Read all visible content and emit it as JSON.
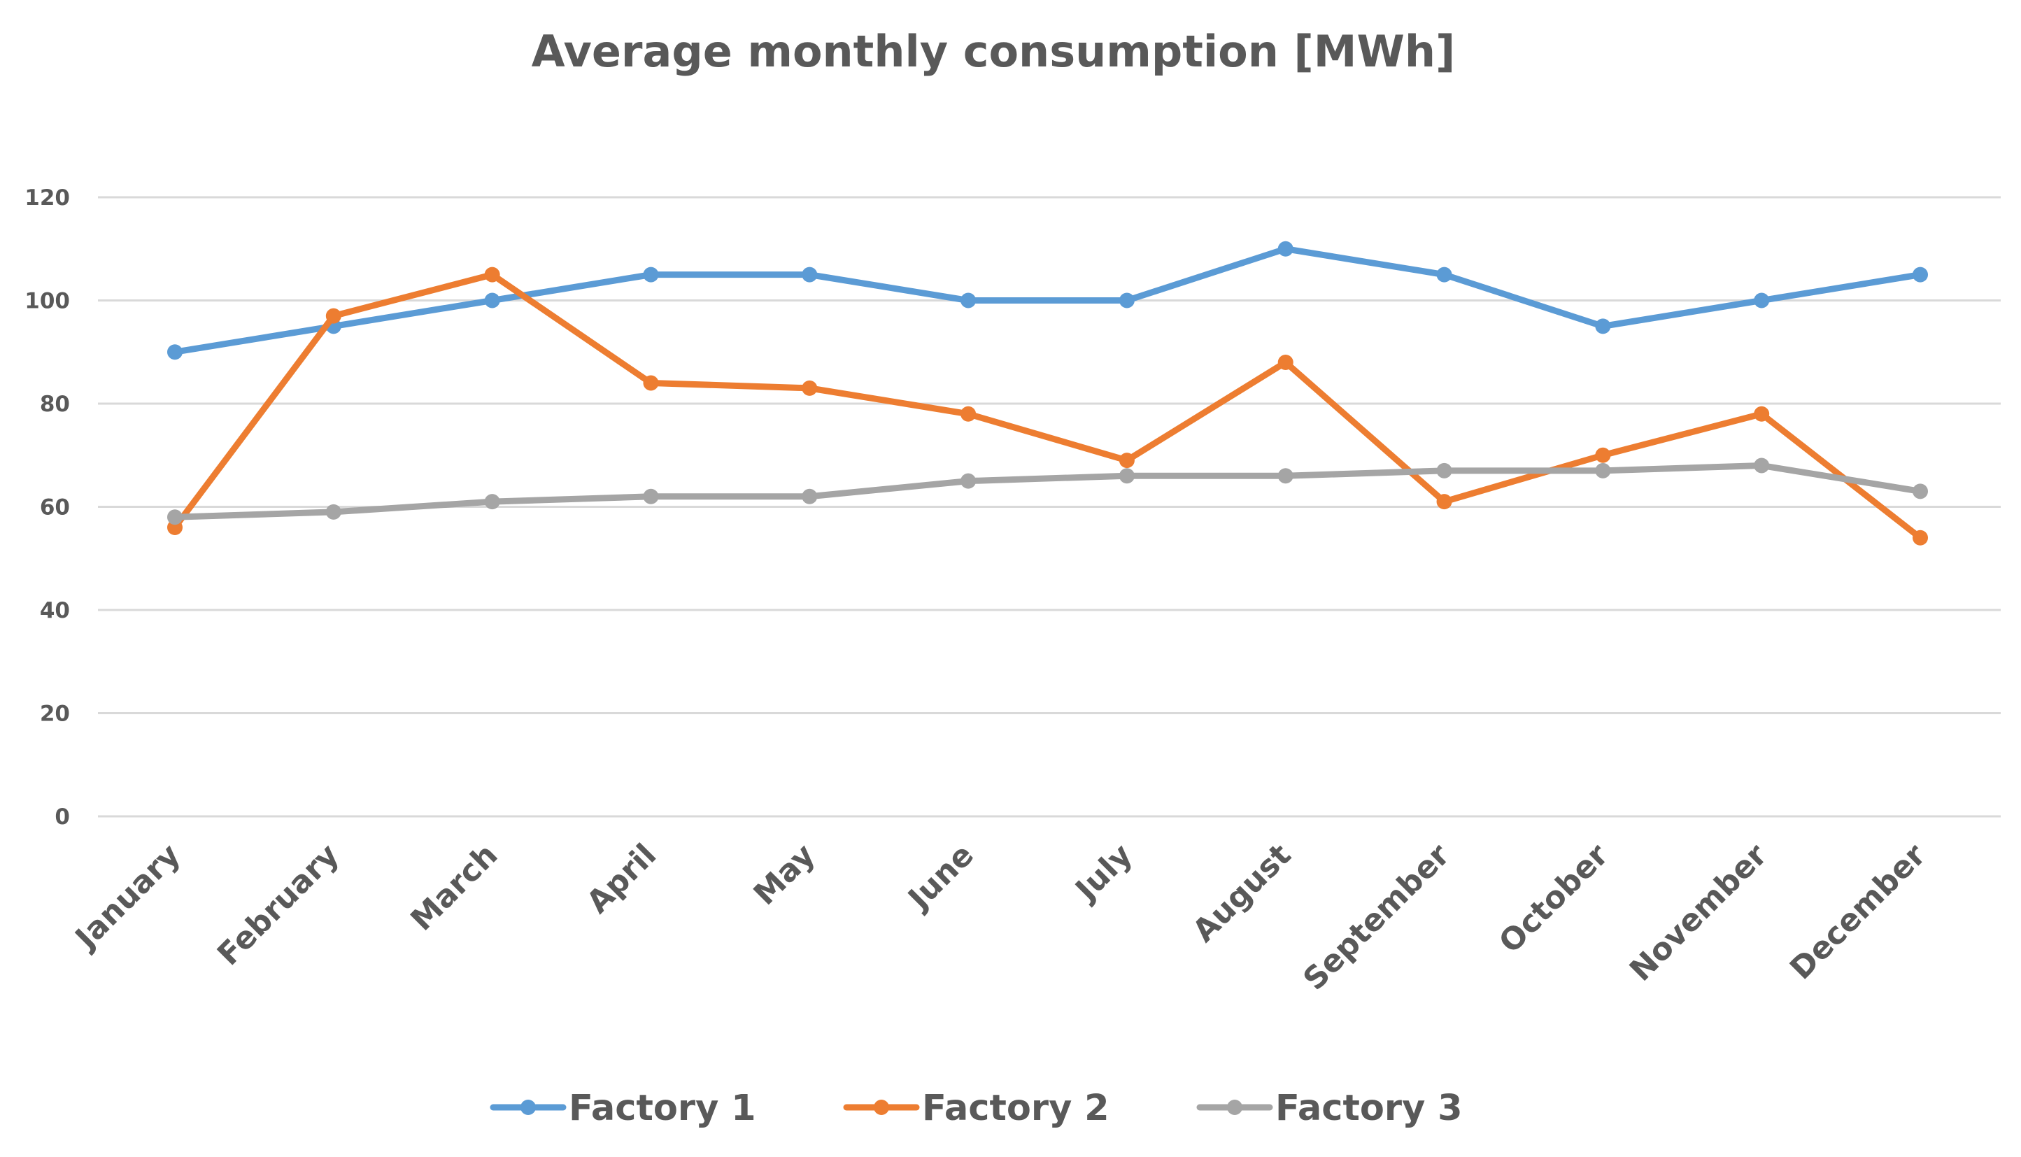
{
  "chart_data": {
    "type": "line",
    "title": "Average monthly consumption [MWh]",
    "xlabel": "",
    "ylabel": "",
    "ylim": [
      0,
      120
    ],
    "yticks": [
      0,
      20,
      40,
      60,
      80,
      100,
      120
    ],
    "grid": true,
    "legend_position": "bottom",
    "categories": [
      "January",
      "February",
      "March",
      "April",
      "May",
      "June",
      "July",
      "August",
      "September",
      "October",
      "November",
      "December"
    ],
    "series": [
      {
        "name": "Factory 1",
        "color": "#5b9bd5",
        "values": [
          90,
          95,
          100,
          105,
          105,
          100,
          100,
          110,
          105,
          95,
          100,
          105
        ]
      },
      {
        "name": "Factory 2",
        "color": "#ed7d31",
        "values": [
          56,
          97,
          105,
          84,
          83,
          78,
          69,
          88,
          61,
          70,
          78,
          54
        ]
      },
      {
        "name": "Factory 3",
        "color": "#a5a5a5",
        "values": [
          58,
          59,
          61,
          62,
          62,
          65,
          66,
          66,
          67,
          67,
          68,
          63
        ]
      }
    ]
  }
}
